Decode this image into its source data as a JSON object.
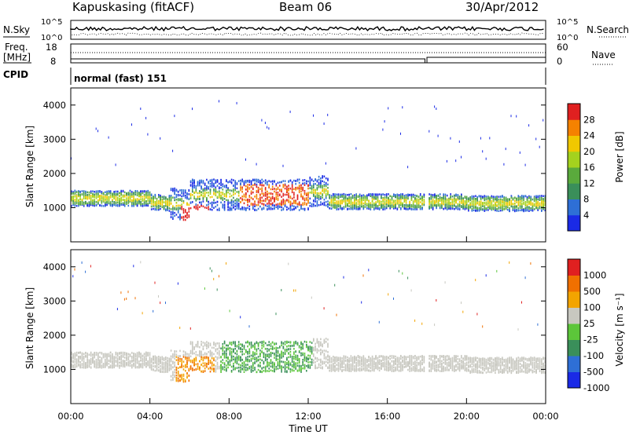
{
  "header": {
    "station": "Kapuskasing (fitACF)",
    "beam": "Beam 06",
    "date": "30/Apr/2012"
  },
  "top_panels": {
    "nsky_label": "N.Sky",
    "nsearch_label": "N.Search",
    "nsky_ticks": [
      "10^5",
      "10^0"
    ],
    "nsearch_ticks": [
      "10^5",
      "10^0"
    ],
    "freq_label": "Freq.",
    "freq_unit": "[MHz]",
    "freq_ticks": [
      "18",
      "8"
    ],
    "nave_label": "Nave",
    "nave_ticks": [
      "60",
      "0"
    ],
    "cpid_label": "CPID",
    "cpid_value": "normal (fast) 151"
  },
  "panels": {
    "power": {
      "ylabel": "Slant Range [km]",
      "cbar_label": "Power [dB]"
    },
    "velocity": {
      "ylabel": "Slant Range [km]",
      "cbar_label": "Velocity [m s⁻¹]"
    }
  },
  "xaxis": {
    "label": "Time UT",
    "ticks": [
      "00:00",
      "04:00",
      "08:00",
      "12:00",
      "16:00",
      "20:00",
      "00:00"
    ]
  },
  "colors": {
    "power_scale": [
      "#1a2ae6",
      "#2e6fd6",
      "#3a8f5a",
      "#5aaa3c",
      "#a4d21e",
      "#f0c800",
      "#f58200",
      "#e02020"
    ],
    "velocity_scale": [
      "#1a2ae6",
      "#2e6fd6",
      "#3a8f5a",
      "#5cc63a",
      "#c8c8c0",
      "#f3a400",
      "#f07000",
      "#e02020"
    ]
  },
  "chart_data": [
    {
      "type": "heatmap",
      "name": "power",
      "ylabel": "Slant Range [km]",
      "xlabel": "",
      "xlim": [
        0,
        24
      ],
      "ylim": [
        0,
        4500
      ],
      "yticks": [
        1000,
        2000,
        3000,
        4000
      ],
      "colorbar": {
        "label": "Power [dB]",
        "ticks": [
          4,
          8,
          12,
          16,
          20,
          24,
          28
        ],
        "range": [
          0,
          30
        ]
      },
      "data_gap_hours": [
        17.9,
        18.0
      ]
    },
    {
      "type": "heatmap",
      "name": "velocity",
      "ylabel": "Slant Range [km]",
      "xlabel": "Time UT",
      "xlim": [
        0,
        24
      ],
      "ylim": [
        0,
        4500
      ],
      "yticks": [
        1000,
        2000,
        3000,
        4000
      ],
      "colorbar": {
        "label": "Velocity [m s⁻¹]",
        "ticks": [
          1000,
          500,
          100,
          25,
          -25,
          -100,
          -500,
          -1000
        ]
      },
      "data_gap_hours": [
        17.9,
        18.0
      ]
    }
  ]
}
